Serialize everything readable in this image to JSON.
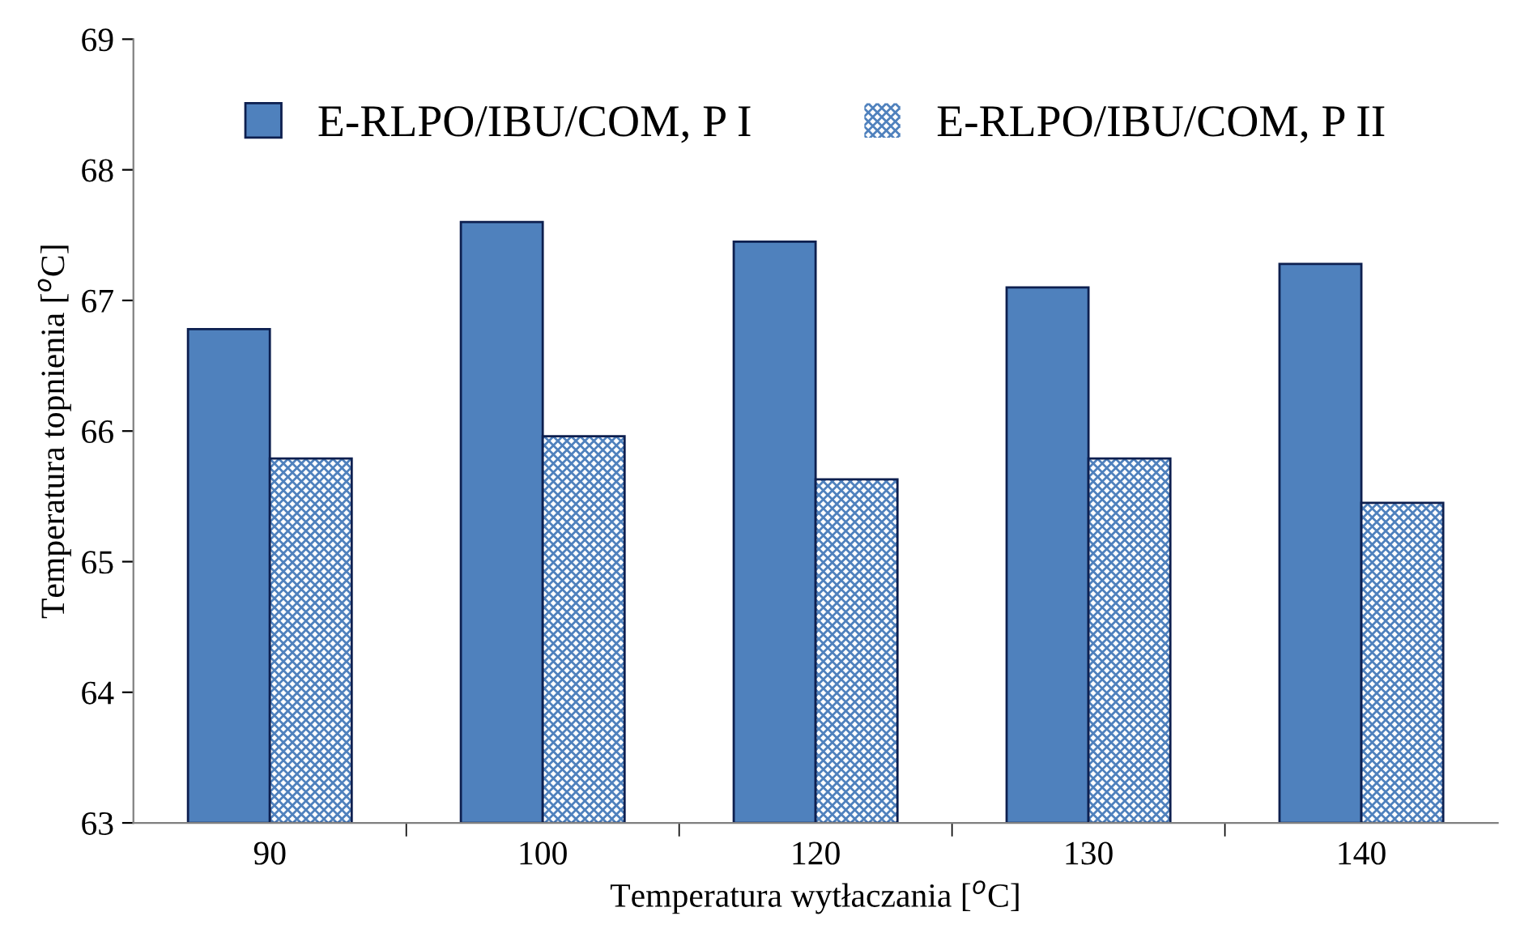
{
  "chart_data": {
    "type": "bar",
    "xlabel": "Temperatura wytłaczania [$^{o}$C]",
    "ylabel": "Temperatura topnienia [$^{o}$C]",
    "categories": [
      "90",
      "100",
      "120",
      "130",
      "140"
    ],
    "series": [
      {
        "name": "E-RLPO/IBU/COM, P I",
        "color": "#4f81bd",
        "values": [
          66.78,
          67.6,
          67.45,
          67.1,
          67.28
        ]
      },
      {
        "name": "E-RLPO/IBU/COM, P II",
        "color": "#4f81bd",
        "values": [
          65.79,
          65.96,
          65.63,
          65.79,
          65.45
        ]
      }
    ],
    "ylim": [
      63,
      69
    ],
    "yticks": [
      63,
      64,
      65,
      66,
      67,
      68,
      69
    ],
    "grid": false,
    "legend": "top"
  }
}
